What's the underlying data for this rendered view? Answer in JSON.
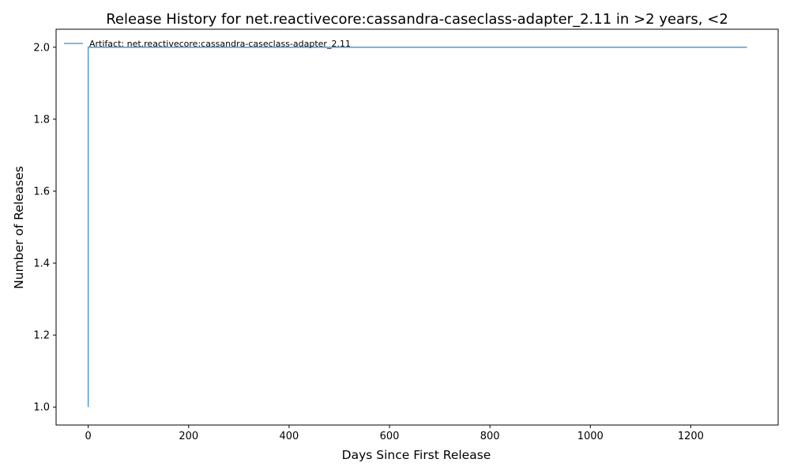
{
  "chart_data": {
    "type": "line",
    "title": "Release History for net.reactivecore:cassandra-caseclass-adapter_2.11 in >2 years, <2",
    "xlabel": "Days Since First Release",
    "ylabel": "Number of Releases",
    "xlim": [
      -64,
      1374
    ],
    "ylim": [
      0.95,
      2.05
    ],
    "xticks": [
      0,
      200,
      400,
      600,
      800,
      1000,
      1200
    ],
    "yticks": [
      1.0,
      1.2,
      1.4,
      1.6,
      1.8,
      2.0
    ],
    "ytick_labels": [
      "1.0",
      "1.2",
      "1.4",
      "1.6",
      "1.8",
      "2.0"
    ],
    "grid": false,
    "legend_position": "top-left",
    "series": [
      {
        "name": "Artifact: net.reactivecore:cassandra-caseclass-adapter_2.11",
        "color": "#5aa0d4",
        "x": [
          0,
          0,
          1312
        ],
        "y": [
          1,
          2,
          2
        ]
      }
    ]
  }
}
